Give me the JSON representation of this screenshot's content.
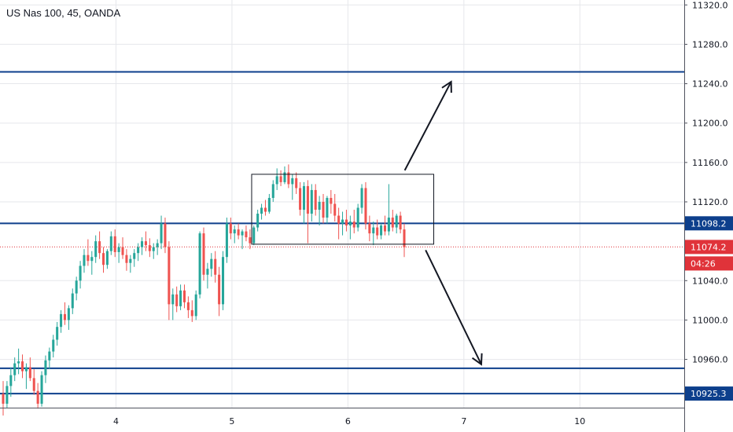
{
  "header": {
    "title": "US Nas 100, 45, OANDA"
  },
  "chart_data": {
    "type": "candlestick",
    "title": "US Nas 100, 45, OANDA",
    "x_ticks": [
      {
        "label": "4",
        "day": 4
      },
      {
        "label": "5",
        "day": 5
      },
      {
        "label": "6",
        "day": 6
      },
      {
        "label": "7",
        "day": 7
      },
      {
        "label": "10",
        "day": 8
      }
    ],
    "y_ticks": [
      "11320.0",
      "11280.0",
      "11240.0",
      "11200.0",
      "11160.0",
      "11120.0",
      "11040.0",
      "11000.0",
      "10960.0"
    ],
    "ylim": [
      10911,
      11325
    ],
    "xlim": [
      3.0,
      8.9
    ],
    "horizontal_levels": [
      {
        "price": 11252,
        "label": "",
        "color": "#0d3f8c"
      },
      {
        "price": 11098.2,
        "label": "11098.2",
        "color": "#0d3f8c"
      },
      {
        "price": 10951,
        "label": "",
        "color": "#0d3f8c"
      },
      {
        "price": 10925.3,
        "label": "10925.3",
        "color": "#0d3f8c"
      }
    ],
    "current_price": {
      "value": 11074.2,
      "label": "11074.2",
      "countdown": "04:26",
      "color": "#e0333a"
    },
    "range_box": {
      "x_start": 5.17,
      "x_end": 6.74,
      "price_top": 11148,
      "price_bottom": 11077
    },
    "arrows": [
      {
        "from": [
          6.49,
          11152
        ],
        "to": [
          6.89,
          11242
        ]
      },
      {
        "from": [
          6.67,
          11071
        ],
        "to": [
          7.15,
          10955
        ]
      }
    ],
    "colors": {
      "up": "#26a69a",
      "down": "#ef5350",
      "level": "#0d3f8c",
      "grid": "#e6e7eb"
    },
    "candles": [
      [
        10925,
        10938,
        10903,
        10915
      ],
      [
        10915,
        10938,
        10911,
        10933
      ],
      [
        10933,
        10952,
        10922,
        10944
      ],
      [
        10944,
        10962,
        10938,
        10956
      ],
      [
        10956,
        10971,
        10945,
        10958
      ],
      [
        10958,
        10965,
        10941,
        10948
      ],
      [
        10948,
        10956,
        10930,
        10952
      ],
      [
        10952,
        10962,
        10938,
        10941
      ],
      [
        10941,
        10950,
        10924,
        10928
      ],
      [
        10928,
        10936,
        10910,
        10915
      ],
      [
        10915,
        10948,
        10912,
        10944
      ],
      [
        10944,
        10964,
        10936,
        10959
      ],
      [
        10959,
        10972,
        10950,
        10968
      ],
      [
        10968,
        10985,
        10962,
        10980
      ],
      [
        10980,
        10998,
        10974,
        10993
      ],
      [
        10993,
        11010,
        10987,
        11006
      ],
      [
        11006,
        11018,
        10995,
        11000
      ],
      [
        11000,
        11015,
        10990,
        11012
      ],
      [
        11012,
        11032,
        11006,
        11027
      ],
      [
        11027,
        11044,
        11020,
        11040
      ],
      [
        11040,
        11060,
        11032,
        11055
      ],
      [
        11055,
        11072,
        11048,
        11066
      ],
      [
        11066,
        11082,
        11055,
        11060
      ],
      [
        11060,
        11070,
        11046,
        11064
      ],
      [
        11064,
        11086,
        11058,
        11080
      ],
      [
        11080,
        11090,
        11062,
        11068
      ],
      [
        11068,
        11074,
        11048,
        11056
      ],
      [
        11056,
        11072,
        11052,
        11070
      ],
      [
        11070,
        11090,
        11066,
        11085
      ],
      [
        11085,
        11092,
        11064,
        11069
      ],
      [
        11069,
        11078,
        11058,
        11074
      ],
      [
        11074,
        11084,
        11062,
        11066
      ],
      [
        11066,
        11072,
        11050,
        11058
      ],
      [
        11058,
        11066,
        11048,
        11062
      ],
      [
        11062,
        11072,
        11054,
        11068
      ],
      [
        11068,
        11078,
        11060,
        11074
      ],
      [
        11074,
        11084,
        11066,
        11080
      ],
      [
        11080,
        11090,
        11070,
        11076
      ],
      [
        11076,
        11083,
        11064,
        11070
      ],
      [
        11070,
        11078,
        11062,
        11074
      ],
      [
        11074,
        11082,
        11066,
        11078
      ],
      [
        11078,
        11106,
        11072,
        11098
      ],
      [
        11098,
        11104,
        11068,
        11074
      ],
      [
        11074,
        11080,
        11000,
        11016
      ],
      [
        11016,
        11032,
        11000,
        11026
      ],
      [
        11026,
        11034,
        11008,
        11014
      ],
      [
        11014,
        11036,
        11010,
        11030
      ],
      [
        11030,
        11036,
        11012,
        11018
      ],
      [
        11018,
        11024,
        11002,
        11010
      ],
      [
        11010,
        11020,
        10998,
        11004
      ],
      [
        11004,
        11030,
        11000,
        11026
      ],
      [
        11026,
        11090,
        11022,
        11088
      ],
      [
        11088,
        11094,
        11040,
        11046
      ],
      [
        11046,
        11058,
        11032,
        11052
      ],
      [
        11052,
        11068,
        11044,
        11062
      ],
      [
        11062,
        11070,
        11038,
        11046
      ],
      [
        11046,
        11054,
        11004,
        11016
      ],
      [
        11016,
        11070,
        11010,
        11064
      ],
      [
        11064,
        11104,
        11058,
        11098
      ],
      [
        11098,
        11104,
        11082,
        11088
      ],
      [
        11088,
        11096,
        11078,
        11092
      ],
      [
        11092,
        11098,
        11082,
        11086
      ],
      [
        11086,
        11092,
        11072,
        11090
      ],
      [
        11090,
        11096,
        11080,
        11084
      ],
      [
        11084,
        11092,
        11072,
        11078
      ],
      [
        11078,
        11096,
        11076,
        11094
      ],
      [
        11094,
        11112,
        11090,
        11108
      ],
      [
        11108,
        11118,
        11102,
        11114
      ],
      [
        11114,
        11122,
        11106,
        11110
      ],
      [
        11110,
        11128,
        11108,
        11124
      ],
      [
        11124,
        11142,
        11120,
        11138
      ],
      [
        11138,
        11154,
        11132,
        11146
      ],
      [
        11146,
        11152,
        11136,
        11140
      ],
      [
        11140,
        11156,
        11138,
        11150
      ],
      [
        11150,
        11158,
        11134,
        11138
      ],
      [
        11138,
        11148,
        11122,
        11144
      ],
      [
        11144,
        11150,
        11128,
        11134
      ],
      [
        11134,
        11140,
        11106,
        11112
      ],
      [
        11112,
        11140,
        11098,
        11136
      ],
      [
        11136,
        11142,
        11078,
        11108
      ],
      [
        11108,
        11138,
        11100,
        11132
      ],
      [
        11132,
        11138,
        11106,
        11112
      ],
      [
        11112,
        11126,
        11096,
        11120
      ],
      [
        11120,
        11128,
        11098,
        11104
      ],
      [
        11104,
        11126,
        11098,
        11124
      ],
      [
        11124,
        11132,
        11108,
        11118
      ],
      [
        11118,
        11128,
        11100,
        11106
      ],
      [
        11106,
        11114,
        11082,
        11098
      ],
      [
        11098,
        11110,
        11086,
        11102
      ],
      [
        11102,
        11112,
        11090,
        11096
      ],
      [
        11096,
        11106,
        11082,
        11100
      ],
      [
        11100,
        11112,
        11088,
        11094
      ],
      [
        11094,
        11118,
        11090,
        11114
      ],
      [
        11114,
        11138,
        11108,
        11134
      ],
      [
        11134,
        11140,
        11092,
        11098
      ],
      [
        11098,
        11106,
        11080,
        11088
      ],
      [
        11088,
        11100,
        11076,
        11094
      ],
      [
        11094,
        11102,
        11082,
        11086
      ],
      [
        11086,
        11098,
        11082,
        11096
      ],
      [
        11096,
        11106,
        11086,
        11090
      ],
      [
        11090,
        11138,
        11086,
        11104
      ],
      [
        11104,
        11112,
        11090,
        11094
      ],
      [
        11094,
        11108,
        11088,
        11106
      ],
      [
        11106,
        11110,
        11088,
        11092
      ],
      [
        11092,
        11098,
        11064,
        11074
      ]
    ]
  }
}
